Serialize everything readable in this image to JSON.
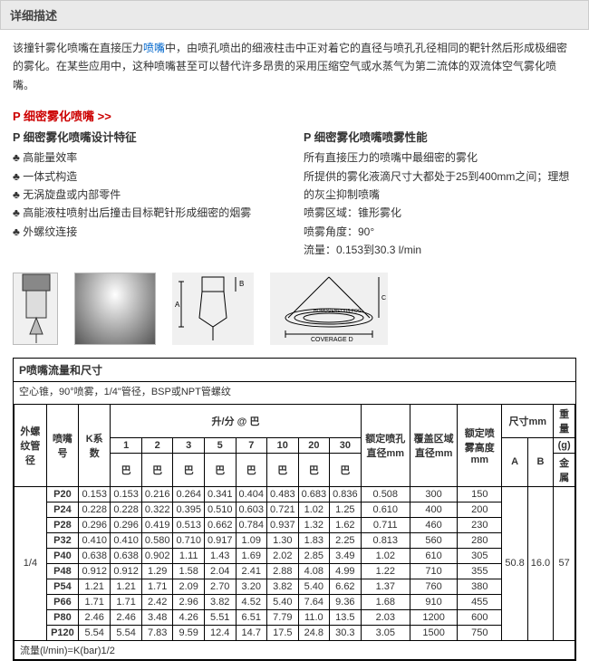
{
  "header": "详细描述",
  "desc_parts": {
    "p1a": "该撞针雾化喷嘴在直接压力",
    "link": "喷嘴",
    "p1b": "中，由喷孔喷出的细液柱击中正对着它的直径与喷孔孔径相同的靶针然后形成极细密的雾化。在某些应用中，这种喷嘴甚至可以替代许多昂贵的采用压缩空气或水蒸气为第二流体的双流体空气雾化喷嘴。"
  },
  "section_title": "P 细密雾化喷嘴 >>",
  "left": {
    "title": "P 细密雾化喷嘴设计特征",
    "items": [
      "高能量效率",
      "一体式构造",
      "无涡旋盘或内部零件",
      "高能液柱喷射出后撞击目标靶针形成细密的烟雾",
      "外螺纹连接"
    ]
  },
  "right": {
    "title": "P 细密雾化喷嘴喷雾性能",
    "lines": [
      "所有直接压力的喷嘴中最细密的雾化",
      "所提供的雾化液滴尺寸大都处于25到400mm之间；理想的灰尘抑制喷嘴",
      "喷雾区域：锥形雾化",
      "喷雾角度：90°",
      "流量：0.153到30.3 l/min"
    ]
  },
  "table": {
    "title": "P喷嘴流量和尺寸",
    "subtitle": "空心锥，90°喷雾，1/4\"管径，BSP或NPT管螺纹",
    "head": {
      "col1": "外螺纹管径",
      "col2": "喷嘴号",
      "col3": "K系数",
      "group": "升/分 @ 巴",
      "bars": [
        "1",
        "2",
        "3",
        "5",
        "7",
        "10",
        "20",
        "30"
      ],
      "bars2": "巴",
      "orifice": "额定喷孔直径mm",
      "cover": "覆盖区域直径mm",
      "fog": "额定喷雾高度mm",
      "dim": "尺寸mm",
      "dimA": "A",
      "dimB": "B",
      "weight": "重量",
      "weight2": "(g)",
      "weight3": "金属"
    },
    "pipe": "1/4",
    "rows": [
      {
        "n": "P20",
        "k": "0.153",
        "v": [
          "0.153",
          "0.216",
          "0.264",
          "0.341",
          "0.404",
          "0.483",
          "0.683",
          "0.836"
        ],
        "o": "0.508",
        "c": "300",
        "f": "150"
      },
      {
        "n": "P24",
        "k": "0.228",
        "v": [
          "0.228",
          "0.322",
          "0.395",
          "0.510",
          "0.603",
          "0.721",
          "1.02",
          "1.25"
        ],
        "o": "0.610",
        "c": "400",
        "f": "200"
      },
      {
        "n": "P28",
        "k": "0.296",
        "v": [
          "0.296",
          "0.419",
          "0.513",
          "0.662",
          "0.784",
          "0.937",
          "1.32",
          "1.62"
        ],
        "o": "0.711",
        "c": "460",
        "f": "230"
      },
      {
        "n": "P32",
        "k": "0.410",
        "v": [
          "0.410",
          "0.580",
          "0.710",
          "0.917",
          "1.09",
          "1.30",
          "1.83",
          "2.25"
        ],
        "o": "0.813",
        "c": "560",
        "f": "280"
      },
      {
        "n": "P40",
        "k": "0.638",
        "v": [
          "0.638",
          "0.902",
          "1.11",
          "1.43",
          "1.69",
          "2.02",
          "2.85",
          "3.49"
        ],
        "o": "1.02",
        "c": "610",
        "f": "305"
      },
      {
        "n": "P48",
        "k": "0.912",
        "v": [
          "0.912",
          "1.29",
          "1.58",
          "2.04",
          "2.41",
          "2.88",
          "4.08",
          "4.99"
        ],
        "o": "1.22",
        "c": "710",
        "f": "355"
      },
      {
        "n": "P54",
        "k": "1.21",
        "v": [
          "1.21",
          "1.71",
          "2.09",
          "2.70",
          "3.20",
          "3.82",
          "5.40",
          "6.62"
        ],
        "o": "1.37",
        "c": "760",
        "f": "380"
      },
      {
        "n": "P66",
        "k": "1.71",
        "v": [
          "1.71",
          "2.42",
          "2.96",
          "3.82",
          "4.52",
          "5.40",
          "7.64",
          "9.36"
        ],
        "o": "1.68",
        "c": "910",
        "f": "455"
      },
      {
        "n": "P80",
        "k": "2.46",
        "v": [
          "2.46",
          "3.48",
          "4.26",
          "5.51",
          "6.51",
          "7.79",
          "11.0",
          "13.5"
        ],
        "o": "2.03",
        "c": "1200",
        "f": "600"
      },
      {
        "n": "P120",
        "k": "5.54",
        "v": [
          "5.54",
          "7.83",
          "9.59",
          "12.4",
          "14.7",
          "17.5",
          "24.8",
          "30.3"
        ],
        "o": "3.05",
        "c": "1500",
        "f": "750"
      }
    ],
    "dimA": "50.8",
    "dimB": "16.0",
    "wt": "57",
    "footer": "流量(l/min)=K(bar)1/2"
  }
}
